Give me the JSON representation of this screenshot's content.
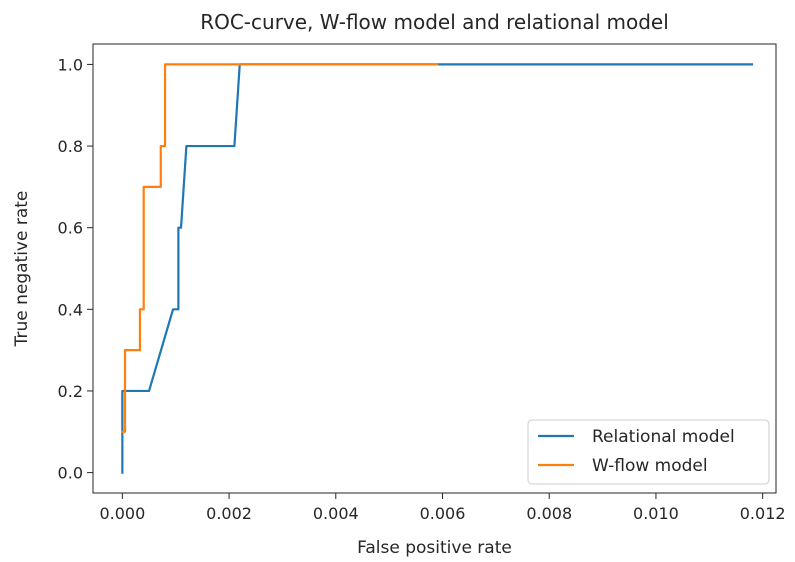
{
  "chart_data": {
    "type": "line",
    "title": "ROC-curve, W-flow model and relational model",
    "xlabel": "False positive rate",
    "ylabel": "True negative rate",
    "xlim": [
      -0.00055,
      0.01225
    ],
    "ylim": [
      -0.05,
      1.05
    ],
    "xticks": [
      0.0,
      0.002,
      0.004,
      0.006,
      0.008,
      0.01,
      0.012
    ],
    "xtick_labels": [
      "0.000",
      "0.002",
      "0.004",
      "0.006",
      "0.008",
      "0.010",
      "0.012"
    ],
    "yticks": [
      0.0,
      0.2,
      0.4,
      0.6,
      0.8,
      1.0
    ],
    "ytick_labels": [
      "0.0",
      "0.2",
      "0.4",
      "0.6",
      "0.8",
      "1.0"
    ],
    "grid": false,
    "legend_position": "lower-right",
    "series": [
      {
        "name": "Relational model",
        "color": "#1f77b4",
        "x": [
          0.0,
          0.0,
          0.0005,
          0.00095,
          0.00105,
          0.00105,
          0.0011,
          0.0012,
          0.0021,
          0.0022,
          0.0118
        ],
        "y": [
          0.0,
          0.2,
          0.2,
          0.4,
          0.4,
          0.6,
          0.6,
          0.8,
          0.8,
          1.0,
          1.0
        ]
      },
      {
        "name": "W-flow model",
        "color": "#ff7f0e",
        "x": [
          0.0,
          5e-05,
          5e-05,
          0.00033,
          0.00033,
          0.0004,
          0.0004,
          0.00072,
          0.00072,
          0.0008,
          0.0008,
          0.0059
        ],
        "y": [
          0.1,
          0.1,
          0.3,
          0.3,
          0.4,
          0.4,
          0.7,
          0.7,
          0.8,
          0.8,
          1.0,
          1.0
        ]
      }
    ]
  }
}
